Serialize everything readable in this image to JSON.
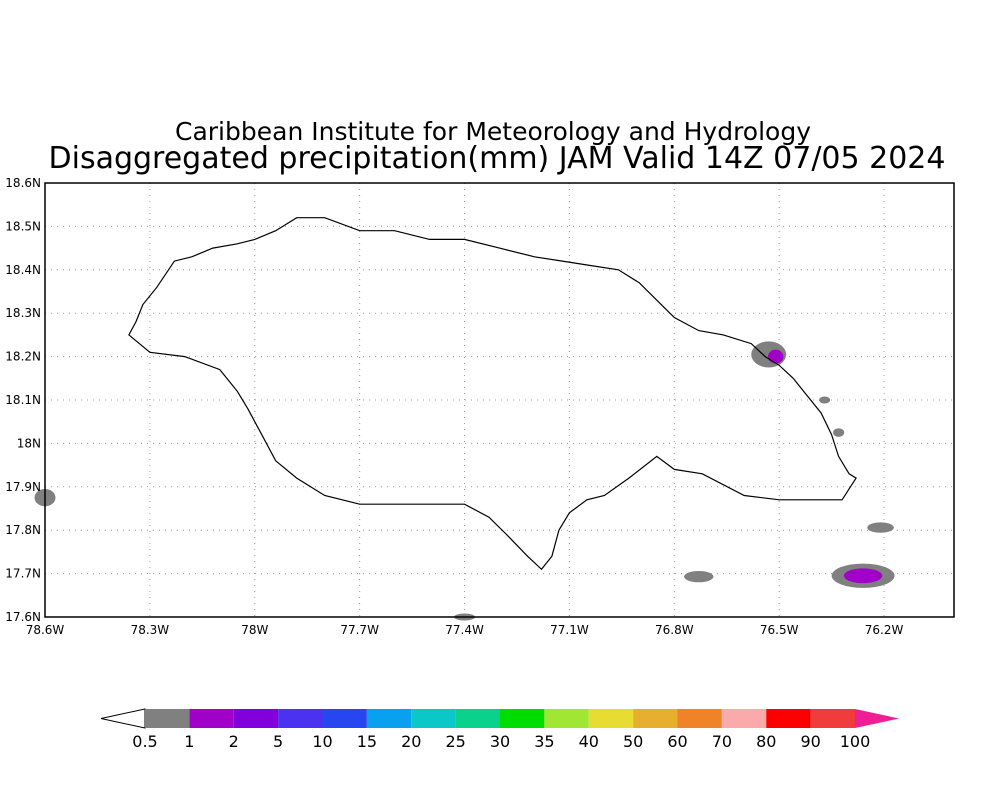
{
  "header": {
    "line1": "Caribbean Institute for Meteorology and Hydrology",
    "line2": "Disaggregated precipitation(mm) JAM Valid 14Z 07/05 2024"
  },
  "map": {
    "lon_range": [
      -78.6,
      -76.0
    ],
    "lat_range": [
      17.6,
      18.6
    ],
    "grid": "dotted",
    "lat_ticks": [
      {
        "value": 18.6,
        "label": "18.6N"
      },
      {
        "value": 18.5,
        "label": "18.5N"
      },
      {
        "value": 18.4,
        "label": "18.4N"
      },
      {
        "value": 18.3,
        "label": "18.3N"
      },
      {
        "value": 18.2,
        "label": "18.2N"
      },
      {
        "value": 18.1,
        "label": "18.1N"
      },
      {
        "value": 18.0,
        "label": "18N"
      },
      {
        "value": 17.9,
        "label": "17.9N"
      },
      {
        "value": 17.8,
        "label": "17.8N"
      },
      {
        "value": 17.7,
        "label": "17.7N"
      },
      {
        "value": 17.6,
        "label": "17.6N"
      }
    ],
    "lon_ticks": [
      {
        "value": -78.6,
        "label": "78.6W"
      },
      {
        "value": -78.3,
        "label": "78.3W"
      },
      {
        "value": -78.0,
        "label": "78W"
      },
      {
        "value": -77.7,
        "label": "77.7W"
      },
      {
        "value": -77.4,
        "label": "77.4W"
      },
      {
        "value": -77.1,
        "label": "77.1W"
      },
      {
        "value": -76.8,
        "label": "76.8W"
      },
      {
        "value": -76.5,
        "label": "76.5W"
      },
      {
        "value": -76.2,
        "label": "76.2W"
      }
    ],
    "coastline": [
      [
        -78.34,
        18.28
      ],
      [
        -78.32,
        18.32
      ],
      [
        -78.28,
        18.36
      ],
      [
        -78.23,
        18.42
      ],
      [
        -78.18,
        18.43
      ],
      [
        -78.12,
        18.45
      ],
      [
        -78.05,
        18.46
      ],
      [
        -78.0,
        18.47
      ],
      [
        -77.94,
        18.49
      ],
      [
        -77.88,
        18.52
      ],
      [
        -77.8,
        18.52
      ],
      [
        -77.7,
        18.49
      ],
      [
        -77.6,
        18.49
      ],
      [
        -77.5,
        18.47
      ],
      [
        -77.4,
        18.47
      ],
      [
        -77.3,
        18.45
      ],
      [
        -77.2,
        18.43
      ],
      [
        -77.12,
        18.42
      ],
      [
        -77.04,
        18.41
      ],
      [
        -76.96,
        18.4
      ],
      [
        -76.9,
        18.37
      ],
      [
        -76.85,
        18.33
      ],
      [
        -76.8,
        18.29
      ],
      [
        -76.73,
        18.26
      ],
      [
        -76.66,
        18.25
      ],
      [
        -76.58,
        18.23
      ],
      [
        -76.54,
        18.2
      ],
      [
        -76.5,
        18.18
      ],
      [
        -76.46,
        18.15
      ],
      [
        -76.42,
        18.11
      ],
      [
        -76.38,
        18.07
      ],
      [
        -76.35,
        18.02
      ],
      [
        -76.33,
        17.97
      ],
      [
        -76.3,
        17.93
      ],
      [
        -76.28,
        17.92
      ],
      [
        -76.32,
        17.87
      ],
      [
        -76.4,
        17.87
      ],
      [
        -76.5,
        17.87
      ],
      [
        -76.6,
        17.88
      ],
      [
        -76.72,
        17.93
      ],
      [
        -76.8,
        17.94
      ],
      [
        -76.85,
        17.97
      ],
      [
        -76.93,
        17.92
      ],
      [
        -77.0,
        17.88
      ],
      [
        -77.05,
        17.87
      ],
      [
        -77.1,
        17.84
      ],
      [
        -77.13,
        17.8
      ],
      [
        -77.15,
        17.74
      ],
      [
        -77.18,
        17.71
      ],
      [
        -77.22,
        17.74
      ],
      [
        -77.28,
        17.79
      ],
      [
        -77.33,
        17.83
      ],
      [
        -77.4,
        17.86
      ],
      [
        -77.5,
        17.86
      ],
      [
        -77.55,
        17.86
      ],
      [
        -77.62,
        17.86
      ],
      [
        -77.7,
        17.86
      ],
      [
        -77.8,
        17.88
      ],
      [
        -77.88,
        17.92
      ],
      [
        -77.94,
        17.96
      ],
      [
        -77.98,
        18.02
      ],
      [
        -78.02,
        18.08
      ],
      [
        -78.05,
        18.12
      ],
      [
        -78.1,
        18.17
      ],
      [
        -78.2,
        18.2
      ],
      [
        -78.3,
        18.21
      ],
      [
        -78.36,
        18.25
      ],
      [
        -78.34,
        18.28
      ]
    ],
    "rain_blobs": [
      {
        "lon": -76.53,
        "lat": 18.205,
        "rlon": 0.05,
        "rlat": 0.03,
        "color": "#808080"
      },
      {
        "lon": -76.51,
        "lat": 18.2,
        "rlon": 0.022,
        "rlat": 0.016,
        "color": "#a000c8"
      },
      {
        "lon": -76.26,
        "lat": 17.695,
        "rlon": 0.09,
        "rlat": 0.028,
        "color": "#808080"
      },
      {
        "lon": -76.26,
        "lat": 17.695,
        "rlon": 0.055,
        "rlat": 0.017,
        "color": "#a000c8"
      },
      {
        "lon": -76.21,
        "lat": 17.806,
        "rlon": 0.038,
        "rlat": 0.012,
        "color": "#808080"
      },
      {
        "lon": -76.73,
        "lat": 17.693,
        "rlon": 0.042,
        "rlat": 0.013,
        "color": "#808080"
      },
      {
        "lon": -78.6,
        "lat": 17.875,
        "rlon": 0.03,
        "rlat": 0.02,
        "color": "#808080"
      },
      {
        "lon": -77.4,
        "lat": 17.6,
        "rlon": 0.03,
        "rlat": 0.008,
        "color": "#808080"
      },
      {
        "lon": -76.37,
        "lat": 18.1,
        "rlon": 0.016,
        "rlat": 0.008,
        "color": "#808080"
      },
      {
        "lon": -76.33,
        "lat": 18.025,
        "rlon": 0.016,
        "rlat": 0.01,
        "color": "#808080"
      }
    ]
  },
  "colorbar": {
    "low_color": "#ffffff",
    "high_color": "#f01e96",
    "colors": [
      "#808080",
      "#a000c8",
      "#8200dc",
      "#4b32f0",
      "#2846f0",
      "#0aa0f0",
      "#0ac8c8",
      "#0ad28c",
      "#00dc00",
      "#a0e632",
      "#e6dc32",
      "#e6af2d",
      "#f08228",
      "#faaaaa",
      "#fa0000",
      "#f03c3c"
    ],
    "labels": [
      "0.5",
      "1",
      "2",
      "5",
      "10",
      "15",
      "20",
      "25",
      "30",
      "35",
      "40",
      "50",
      "60",
      "70",
      "80",
      "90",
      "100"
    ]
  }
}
